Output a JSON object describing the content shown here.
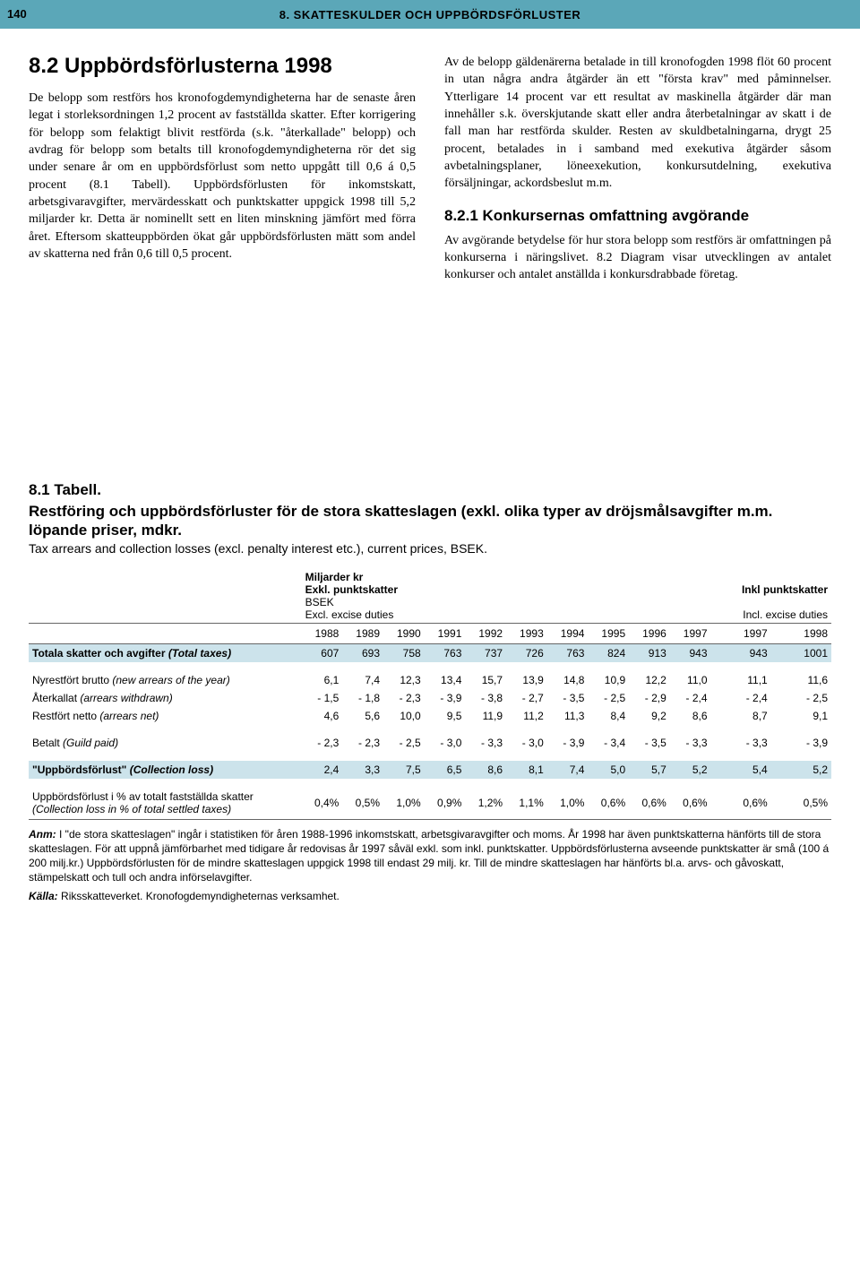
{
  "page_number": "140",
  "header": "8. SKATTESKULDER OCH UPPBÖRDSFÖRLUSTER",
  "left": {
    "heading": "8.2 Uppbördsförlusterna 1998",
    "para": "De belopp som restförs hos kronofogdemyndigheterna har de senaste åren legat i storleksordningen 1,2 procent av fastställda skatter. Efter korrigering för belopp som felaktigt blivit restförda (s.k. \"återkallade\" belopp) och avdrag för belopp som betalts till kronofogdemyndigheterna rör det sig under senare år om en uppbördsförlust som netto uppgått till 0,6 á 0,5 procent (8.1 Tabell). Uppbördsförlusten för inkomstskatt, arbetsgivaravgifter, mervärdesskatt och punktskatter uppgick 1998 till 5,2 miljarder kr. Detta är nominellt sett en liten minskning jämfört med förra året. Eftersom skatteuppbörden ökat går uppbördsförlusten mätt som andel av skatterna ned från 0,6 till 0,5 procent."
  },
  "right": {
    "para1": "Av de belopp gäldenärerna betalade in till kronofogden 1998 flöt 60 procent in utan några andra åtgärder än ett \"första krav\" med påminnelser. Ytterligare 14 procent var ett resultat av maskinella åtgärder där man innehåller s.k. överskjutande skatt eller andra återbetalningar av skatt i de fall man har restförda skulder. Resten av skuldbetalningarna, drygt 25 procent, betalades in i samband med exekutiva åtgärder såsom avbetalningsplaner, löneexekution, konkursutdelning, exekutiva försäljningar, ackordsbeslut m.m.",
    "heading": "8.2.1 Konkursernas omfattning avgörande",
    "para2": "Av avgörande betydelse för hur stora belopp som restförs är omfattningen på konkurserna i näringslivet. 8.2 Diagram visar utvecklingen av antalet konkurser och antalet anställda i konkursdrabbade företag."
  },
  "table": {
    "title_sv_line1": "8.1 Tabell.",
    "title_sv_line2": "Restföring och uppbördsförluster för de stora skatteslagen (exkl. olika typer av dröjsmålsavgifter m.m. löpande priser, mdkr.",
    "title_en": "Tax arrears and collection losses (excl. penalty interest etc.), current prices, BSEK.",
    "col_group_left_sv": "Miljarder kr\nExkl. punktskatter",
    "col_group_left_en": "BSEK\nExcl. excise duties",
    "col_group_right_sv": "Inkl punktskatter",
    "col_group_right_en": "Incl. excise duties",
    "years_left": [
      "1988",
      "1989",
      "1990",
      "1991",
      "1992",
      "1993",
      "1994",
      "1995",
      "1996",
      "1997"
    ],
    "years_right": [
      "1997",
      "1998"
    ],
    "rows": [
      {
        "label": "Totala skatter och avgifter",
        "label_en": "(Total taxes)",
        "hl": true,
        "left": [
          "607",
          "693",
          "758",
          "763",
          "737",
          "726",
          "763",
          "824",
          "913",
          "943"
        ],
        "right": [
          "943",
          "1001"
        ]
      },
      {
        "sep": true
      },
      {
        "label": "Nyrestfört brutto",
        "label_en": "(new arrears of the year)",
        "left": [
          "6,1",
          "7,4",
          "12,3",
          "13,4",
          "15,7",
          "13,9",
          "14,8",
          "10,9",
          "12,2",
          "11,0"
        ],
        "right": [
          "11,1",
          "11,6"
        ]
      },
      {
        "label": "Återkallat",
        "label_en": "(arrears withdrawn)",
        "left": [
          "- 1,5",
          "- 1,8",
          "- 2,3",
          "- 3,9",
          "- 3,8",
          "- 2,7",
          "- 3,5",
          "- 2,5",
          "- 2,9",
          "- 2,4"
        ],
        "right": [
          "- 2,4",
          "- 2,5"
        ]
      },
      {
        "label": "Restfört netto",
        "label_en": "(arrears net)",
        "left": [
          "4,6",
          "5,6",
          "10,0",
          "9,5",
          "11,9",
          "11,2",
          "11,3",
          "8,4",
          "9,2",
          "8,6"
        ],
        "right": [
          "8,7",
          "9,1"
        ]
      },
      {
        "sep": true
      },
      {
        "label": "Betalt",
        "label_en": "(Guild paid)",
        "left": [
          "- 2,3",
          "- 2,3",
          "- 2,5",
          "- 3,0",
          "- 3,3",
          "- 3,0",
          "- 3,9",
          "- 3,4",
          "- 3,5",
          "- 3,3"
        ],
        "right": [
          "- 3,3",
          "- 3,9"
        ]
      },
      {
        "sep": true
      },
      {
        "label": "\"Uppbördsförlust\"",
        "label_en": "(Collection loss)",
        "hl": true,
        "left": [
          "2,4",
          "3,3",
          "7,5",
          "6,5",
          "8,6",
          "8,1",
          "7,4",
          "5,0",
          "5,7",
          "5,2"
        ],
        "right": [
          "5,4",
          "5,2"
        ]
      },
      {
        "sep": true
      },
      {
        "label": "Uppbördsförlust i % av totalt fastställda skatter",
        "label_en": "(Collection loss in % of total settled taxes)",
        "left": [
          "0,4%",
          "0,5%",
          "1,0%",
          "0,9%",
          "1,2%",
          "1,1%",
          "1,0%",
          "0,6%",
          "0,6%",
          "0,6%"
        ],
        "right": [
          "0,6%",
          "0,5%"
        ]
      }
    ],
    "note_label": "Anm:",
    "note": "I \"de stora skatteslagen\" ingår i statistiken för åren 1988-1996 inkomstskatt, arbetsgivaravgifter och moms. År 1998 har även punktskatterna hänförts till de stora skatteslagen. För att uppnå jämförbarhet med tidigare år redovisas år 1997 såväl exkl. som inkl. punktskatter. Uppbördsförlusterna avseende punktskatter är små (100 á 200 milj.kr.) Uppbördsförlusten för de mindre skatteslagen uppgick 1998 till endast 29 milj. kr. Till de mindre skatteslagen har hänförts bl.a. arvs- och gåvoskatt, stämpelskatt och tull och andra införselavgifter.",
    "source_label": "Källa:",
    "source": "Riksskatteverket. Kronofogdemyndigheternas verksamhet."
  }
}
